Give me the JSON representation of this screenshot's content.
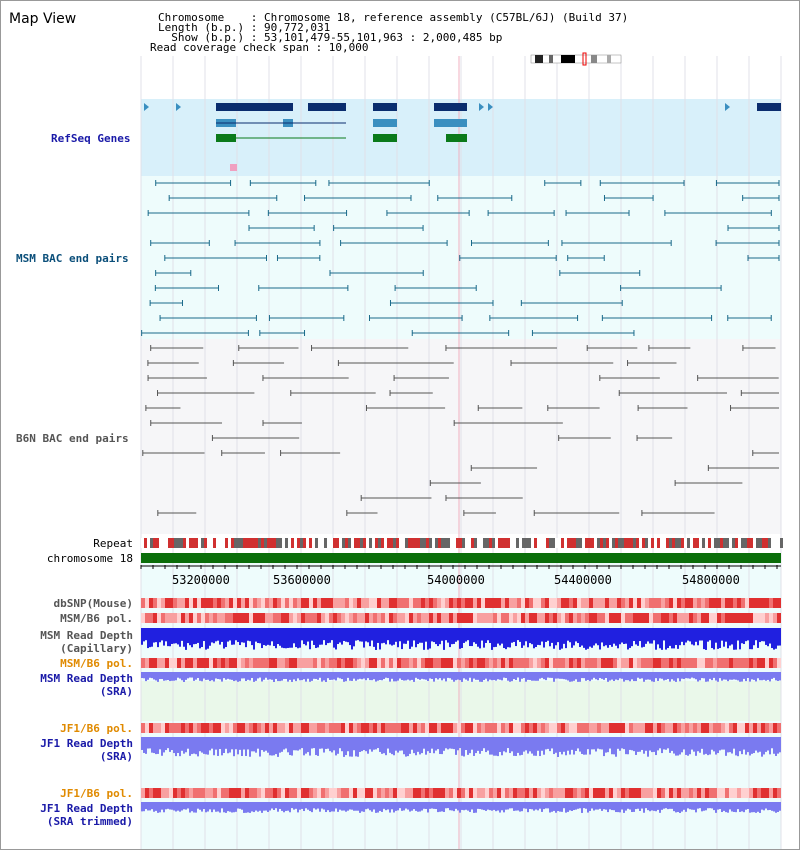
{
  "page_title": "Map View",
  "info": {
    "line1": "Chromosome    : Chromosome 18, reference assembly (C57BL/6J) (Build 37)",
    "line2": "Length (b.p.) : 90,772,031",
    "line3": "  Show (b.p.) : 53,101,479-55,101,963 : 2,000,485 bp",
    "line4": "Read coverage check span : 10,000"
  },
  "tracks": {
    "refseq": "RefSeq Genes",
    "msm_bac": "MSM BAC end pairs",
    "b6n_bac": "B6N BAC end pairs",
    "repeat": "Repeat",
    "chromosome": "chromosome 18",
    "dbsnp": "dbSNP(Mouse)",
    "msm_b6_pol_1": "MSM/B6 pol.",
    "msm_read_depth_cap_1": "MSM Read Depth",
    "msm_read_depth_cap_2": "(Capillary)",
    "msm_b6_pol_2": "MSM/B6 pol.",
    "msm_read_depth_sra_1": "MSM Read Depth",
    "msm_read_depth_sra_2": "(SRA)",
    "jf1_b6_pol_1": "JF1/B6 pol.",
    "jf1_read_depth_sra_1": "JF1 Read Depth",
    "jf1_read_depth_sra_2": "(SRA)",
    "jf1_b6_pol_2": "JF1/B6 pol.",
    "jf1_read_depth_trim_1": "JF1 Read Depth",
    "jf1_read_depth_trim_2": "(SRA trimmed)"
  },
  "axis": {
    "ticks": [
      "53200000",
      "53600000",
      "54000000",
      "54400000",
      "54800000"
    ]
  },
  "colors": {
    "refseq_bg": "#d8f0fa",
    "bac_bg": "#eefcfc",
    "gene_dark": "#0a2d6e",
    "gene_mid": "#3a8fc0",
    "gene_green": "#0a7a1a",
    "msm_line": "#1a6a8a",
    "b6n_line": "#555555",
    "chrom_green": "#0a6e0a",
    "depth_dark": "#2020e0",
    "depth_light": "#7a7af0",
    "pol_red": "#e04040"
  }
}
